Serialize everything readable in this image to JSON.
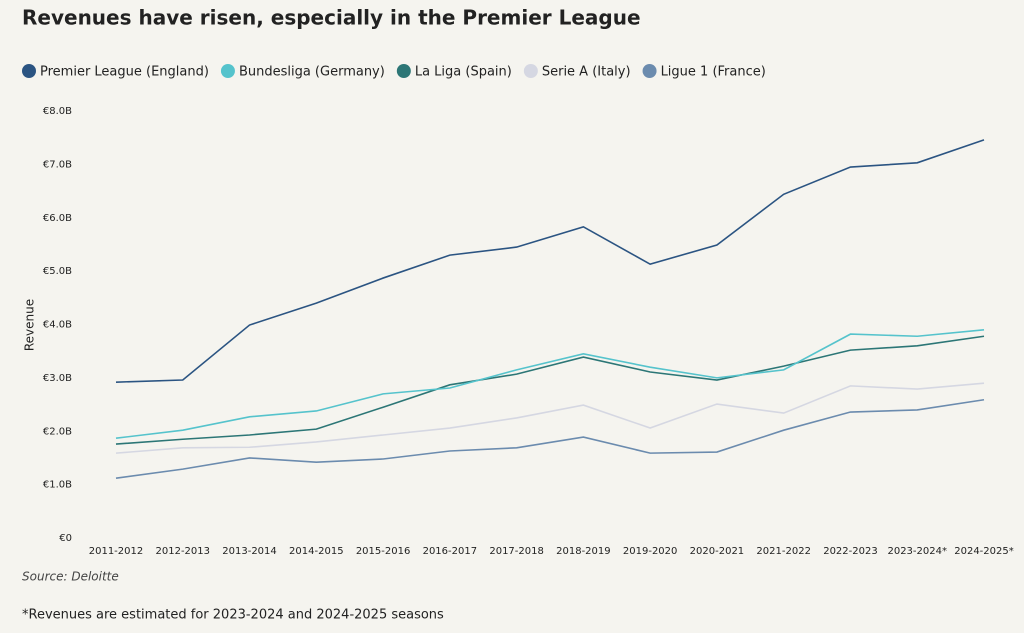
{
  "chart_data": {
    "type": "line",
    "title": "Revenues have risen, especially in the Premier League",
    "y_label": "Revenue",
    "source": "Source: Deloitte",
    "footnote": "*Revenues are estimated for 2023-2024 and 2024-2025 seasons",
    "legend": "top-left",
    "categories": [
      "2011-2012",
      "2012-2013",
      "2013-2014",
      "2014-2015",
      "2015-2016",
      "2016-2017",
      "2017-2018",
      "2018-2019",
      "2019-2020",
      "2020-2021",
      "2021-2022",
      "2022-2023",
      "2023-2024*",
      "2024-2025*"
    ],
    "ylim": [
      0,
      8
    ],
    "yticks": [
      {
        "value": 0,
        "label": "€0"
      },
      {
        "value": 1,
        "label": "€1.0B"
      },
      {
        "value": 2,
        "label": "€2.0B"
      },
      {
        "value": 3,
        "label": "€3.0B"
      },
      {
        "value": 4,
        "label": "€4.0B"
      },
      {
        "value": 5,
        "label": "€5.0B"
      },
      {
        "value": 6,
        "label": "€6.0B"
      },
      {
        "value": 7,
        "label": "€7.0B"
      },
      {
        "value": 8,
        "label": "€8.0B"
      }
    ],
    "grid": false,
    "series": [
      {
        "name": "Premier League (England)",
        "color": "#2b5482",
        "values": [
          2.92,
          2.96,
          3.99,
          4.4,
          4.87,
          5.3,
          5.45,
          5.83,
          5.13,
          5.49,
          6.44,
          6.95,
          7.03,
          7.46
        ]
      },
      {
        "name": "Bundesliga (Germany)",
        "color": "#55c3cc",
        "values": [
          1.87,
          2.02,
          2.27,
          2.38,
          2.7,
          2.81,
          3.15,
          3.45,
          3.2,
          3.0,
          3.15,
          3.82,
          3.78,
          3.9
        ]
      },
      {
        "name": "La Liga (Spain)",
        "color": "#2c7676",
        "values": [
          1.76,
          1.85,
          1.93,
          2.04,
          2.45,
          2.87,
          3.07,
          3.39,
          3.11,
          2.96,
          3.22,
          3.52,
          3.6,
          3.78
        ]
      },
      {
        "name": "Serie A (Italy)",
        "color": "#d5d7e2",
        "values": [
          1.59,
          1.69,
          1.7,
          1.8,
          1.93,
          2.06,
          2.25,
          2.49,
          2.06,
          2.51,
          2.34,
          2.85,
          2.79,
          2.9
        ]
      },
      {
        "name": "Ligue 1 (France)",
        "color": "#6b8bae",
        "values": [
          1.12,
          1.29,
          1.5,
          1.42,
          1.48,
          1.63,
          1.69,
          1.89,
          1.59,
          1.61,
          2.02,
          2.36,
          2.4,
          2.59
        ]
      }
    ]
  }
}
